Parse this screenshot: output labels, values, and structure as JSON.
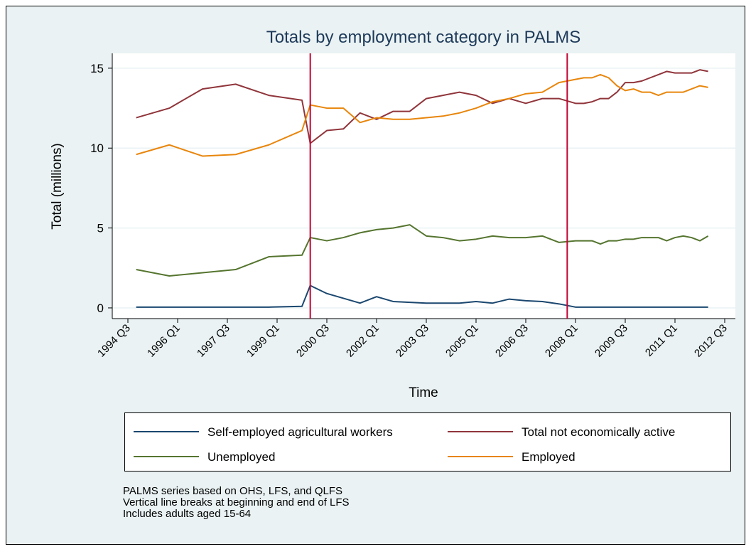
{
  "chart_data": {
    "type": "line",
    "title": "Totals by employment category in PALMS",
    "xlabel": "Time",
    "ylabel": "Total (millions)",
    "x": [
      "1994 Q4",
      "1995 Q4",
      "1996 Q4",
      "1997 Q4",
      "1998 Q4",
      "1999 Q4",
      "2000 Q1",
      "2000 Q3",
      "2001 Q1",
      "2001 Q3",
      "2002 Q1",
      "2002 Q3",
      "2003 Q1",
      "2003 Q3",
      "2004 Q1",
      "2004 Q3",
      "2005 Q1",
      "2005 Q3",
      "2006 Q1",
      "2006 Q3",
      "2007 Q1",
      "2007 Q3",
      "2008 Q1",
      "2008 Q2",
      "2008 Q3",
      "2008 Q4",
      "2009 Q1",
      "2009 Q2",
      "2009 Q3",
      "2009 Q4",
      "2010 Q1",
      "2010 Q2",
      "2010 Q3",
      "2010 Q4",
      "2011 Q1",
      "2011 Q2",
      "2011 Q3",
      "2011 Q4",
      "2012 Q1"
    ],
    "series": [
      {
        "name": "Self-employed agricultural workers",
        "color": "#1a476f",
        "values": [
          0.05,
          0.05,
          0.05,
          0.05,
          0.05,
          0.1,
          1.4,
          0.9,
          0.6,
          0.3,
          0.7,
          0.4,
          0.35,
          0.3,
          0.3,
          0.3,
          0.4,
          0.3,
          0.55,
          0.45,
          0.4,
          0.25,
          0.05,
          0.05,
          0.05,
          0.05,
          0.05,
          0.05,
          0.05,
          0.05,
          0.05,
          0.05,
          0.05,
          0.05,
          0.05,
          0.05,
          0.05,
          0.05,
          0.05
        ]
      },
      {
        "name": "Total not economically active",
        "color": "#90353b",
        "values": [
          11.9,
          12.5,
          13.7,
          14.0,
          13.3,
          13.0,
          10.3,
          11.1,
          11.2,
          12.2,
          11.8,
          12.3,
          12.3,
          13.1,
          13.3,
          13.5,
          13.3,
          12.8,
          13.1,
          12.8,
          13.1,
          13.1,
          12.8,
          12.8,
          12.9,
          13.1,
          13.1,
          13.5,
          14.1,
          14.1,
          14.2,
          14.4,
          14.6,
          14.8,
          14.7,
          14.7,
          14.7,
          14.9,
          14.8
        ]
      },
      {
        "name": "Unemployed",
        "color": "#55752f",
        "values": [
          2.4,
          2.0,
          2.2,
          2.4,
          3.2,
          3.3,
          4.4,
          4.2,
          4.4,
          4.7,
          4.9,
          5.0,
          5.2,
          4.5,
          4.4,
          4.2,
          4.3,
          4.5,
          4.4,
          4.4,
          4.5,
          4.1,
          4.2,
          4.2,
          4.2,
          4.0,
          4.2,
          4.2,
          4.3,
          4.3,
          4.4,
          4.4,
          4.4,
          4.2,
          4.4,
          4.5,
          4.4,
          4.2,
          4.5
        ]
      },
      {
        "name": "Employed",
        "color": "#e8860c",
        "values": [
          9.6,
          10.2,
          9.5,
          9.6,
          10.2,
          11.1,
          12.7,
          12.5,
          12.5,
          11.6,
          11.9,
          11.8,
          11.8,
          11.9,
          12.0,
          12.2,
          12.5,
          12.9,
          13.1,
          13.4,
          13.5,
          14.1,
          14.3,
          14.4,
          14.4,
          14.6,
          14.4,
          13.9,
          13.6,
          13.7,
          13.5,
          13.5,
          13.3,
          13.5,
          13.5,
          13.5,
          13.7,
          13.9,
          13.8
        ]
      }
    ],
    "xlim": [
      "1994 Q3",
      "2012 Q3"
    ],
    "xticks": [
      "1994 Q3",
      "1996 Q1",
      "1997 Q3",
      "1999 Q1",
      "2000 Q3",
      "2002 Q1",
      "2003 Q3",
      "2005 Q1",
      "2006 Q3",
      "2008 Q1",
      "2009 Q3",
      "2011 Q1",
      "2012 Q3"
    ],
    "ylim": [
      -0.67,
      15.93
    ],
    "yticks": [
      0,
      5,
      10,
      15
    ],
    "grid": true,
    "xlines": [
      "2000 Q1",
      "2007 Q4"
    ],
    "xline_color": "#c10534",
    "legend_position": "bottom",
    "notes": [
      "PALMS series based on OHS, LFS, and QLFS",
      "Vertical line breaks at beginning and end of LFS",
      "Includes adults aged 15-64"
    ]
  }
}
